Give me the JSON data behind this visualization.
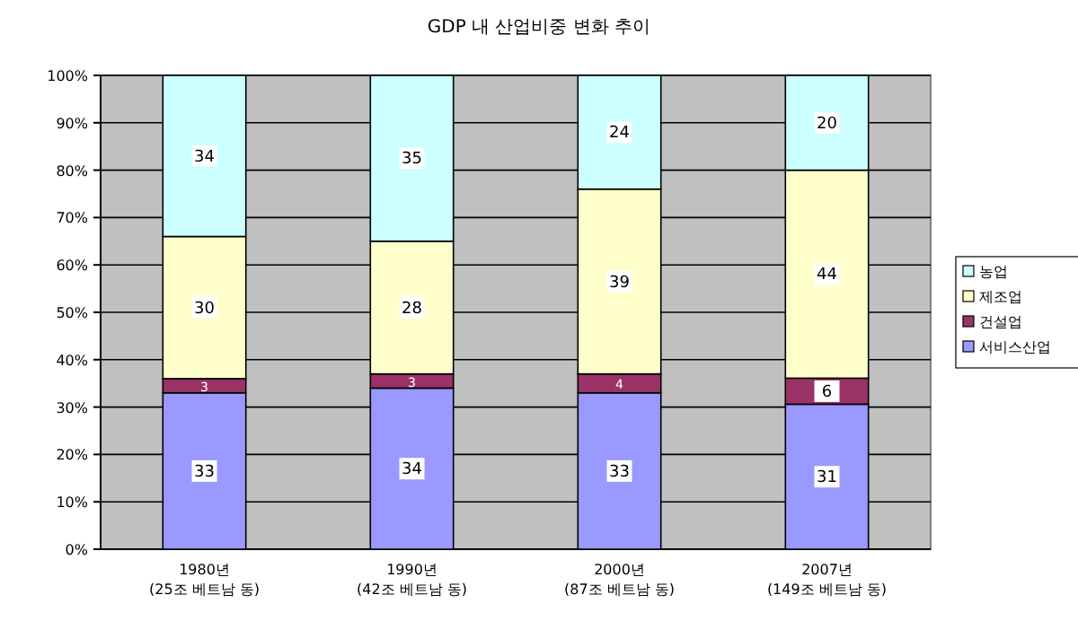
{
  "chart_data": {
    "type": "bar",
    "stacked": true,
    "title": "GDP 내 산업비중 변화 추이",
    "categories": [
      "1980년\n(25조 베트남 동)",
      "1990년\n(42조 베트남 동)",
      "2000년\n(87조 베트남 동)",
      "2007년\n(149조 베트남 동)"
    ],
    "series": [
      {
        "name": "서비스산업",
        "color": "#9999ff",
        "values": [
          33,
          34,
          33,
          30.6
        ],
        "value_labels": [
          "33",
          "34",
          "33",
          "31"
        ]
      },
      {
        "name": "건설업",
        "color": "#993366",
        "values": [
          3,
          3,
          4,
          5.5
        ],
        "value_labels": [
          "3",
          "3",
          "4",
          "6"
        ]
      },
      {
        "name": "제조업",
        "color": "#ffffcc",
        "values": [
          30,
          28,
          39,
          43.9
        ],
        "value_labels": [
          "30",
          "28",
          "39",
          "44"
        ]
      },
      {
        "name": "농업",
        "color": "#ccffff",
        "values": [
          34,
          35,
          24,
          20
        ],
        "value_labels": [
          "34",
          "35",
          "24",
          "20"
        ]
      }
    ],
    "ylim": [
      0,
      100
    ],
    "yticks": [
      {
        "value": 0,
        "label": "0%"
      },
      {
        "value": 10,
        "label": "10%"
      },
      {
        "value": 20,
        "label": "20%"
      },
      {
        "value": 30,
        "label": "30%"
      },
      {
        "value": 40,
        "label": "40%"
      },
      {
        "value": 50,
        "label": "50%"
      },
      {
        "value": 60,
        "label": "60%"
      },
      {
        "value": 70,
        "label": "70%"
      },
      {
        "value": 80,
        "label": "80%"
      },
      {
        "value": 90,
        "label": "90%"
      },
      {
        "value": 100,
        "label": "100%"
      }
    ],
    "grid": "y",
    "legend": "right"
  }
}
